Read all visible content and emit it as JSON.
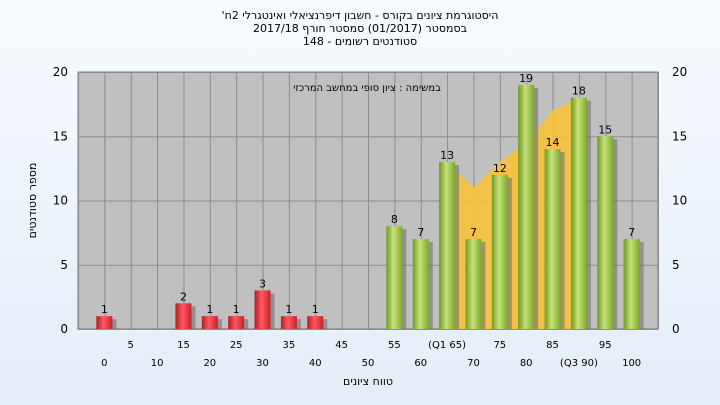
{
  "chart_data": {
    "type": "bar",
    "title": "היסטוגרמת ציונים בקורס - חשבון דיפרנציאלי ואינטגרלי 2ח'",
    "subtitle_1": "בסמסטר   (01/2017)  סמסטר חורף 2017/18",
    "subtitle_2": "סטודנטים רשומים - 148",
    "annotation": "במשימה : ציון סופי במחשב המרכזי",
    "xlabel": "טווח ציונים",
    "ylabel": "מספר סטודנטים",
    "ylim": [
      0,
      20
    ],
    "yticks": [
      0,
      5,
      10,
      15,
      20
    ],
    "grid": true,
    "x_tick_labels_row1": [
      "5",
      "15",
      "25",
      "35",
      "45",
      "55",
      "(Q1 65)",
      "75",
      "85",
      "95"
    ],
    "x_tick_labels_row2": [
      "0",
      "10",
      "20",
      "30",
      "40",
      "50",
      "60",
      "70",
      "80",
      "(Q3 90)",
      "100"
    ],
    "series": [
      {
        "bars": [
          {
            "x": 0,
            "value": 1,
            "color": "red"
          },
          {
            "x": 15,
            "value": 2,
            "color": "red"
          },
          {
            "x": 20,
            "value": 1,
            "color": "red"
          },
          {
            "x": 25,
            "value": 1,
            "color": "red"
          },
          {
            "x": 30,
            "value": 3,
            "color": "red"
          },
          {
            "x": 35,
            "value": 1,
            "color": "red"
          },
          {
            "x": 40,
            "value": 1,
            "color": "red"
          },
          {
            "x": 55,
            "value": 8,
            "color": "green"
          },
          {
            "x": 60,
            "value": 7,
            "color": "green"
          },
          {
            "x": 65,
            "value": 13,
            "color": "green"
          },
          {
            "x": 70,
            "value": 7,
            "color": "green"
          },
          {
            "x": 75,
            "value": 12,
            "color": "green"
          },
          {
            "x": 80,
            "value": 19,
            "color": "green"
          },
          {
            "x": 85,
            "value": 14,
            "color": "green"
          },
          {
            "x": 90,
            "value": 18,
            "color": "green"
          },
          {
            "x": 95,
            "value": 15,
            "color": "green"
          },
          {
            "x": 100,
            "value": 7,
            "color": "green"
          }
        ]
      }
    ],
    "iqr_area": [
      {
        "x": 65,
        "value": 13
      },
      {
        "x": 70,
        "value": 11
      },
      {
        "x": 75,
        "value": 13
      },
      {
        "x": 80,
        "value": 14.5
      },
      {
        "x": 85,
        "value": 17
      },
      {
        "x": 90,
        "value": 18
      }
    ],
    "colors": {
      "plot_background": "#c0c0c0",
      "gridline": "#8c8c8c",
      "red_bar": "#e8323a",
      "green_bar": "#9bc53d",
      "iqr_area": "#f5c242",
      "page_background": "#eaf2fa"
    }
  }
}
